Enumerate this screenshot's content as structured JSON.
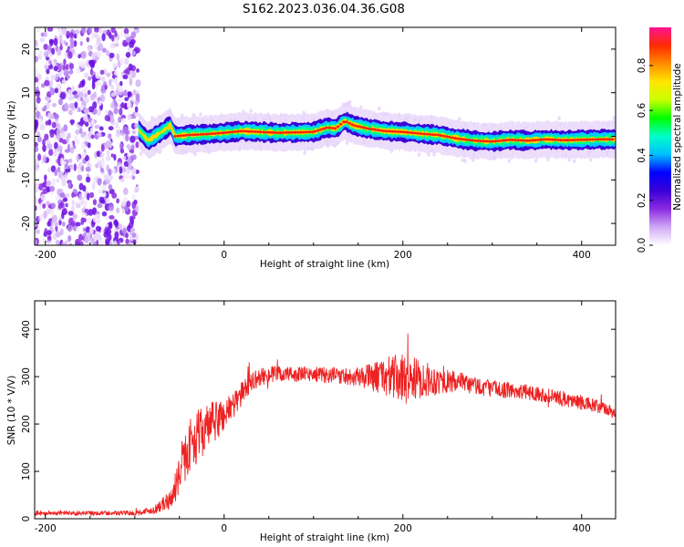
{
  "figure": {
    "title": "S162.2023.036.04.36.G08"
  },
  "chart_data": [
    {
      "type": "heatmap",
      "xlabel": "Height of straight line (km)",
      "ylabel": "Frequency (Hz)",
      "xlim": [
        -212,
        438
      ],
      "ylim": [
        -25,
        25
      ],
      "xticks": [
        "-200",
        "0",
        "200",
        "400"
      ],
      "xtick_values": [
        -200,
        0,
        200,
        400
      ],
      "yticks": [
        "-20",
        "-10",
        "0",
        "10",
        "20"
      ],
      "ytick_values": [
        -20,
        -10,
        0,
        10,
        20
      ],
      "noise_region_x": [
        -212,
        -96
      ],
      "track": {
        "x": [
          -96,
          -85,
          -70,
          -60,
          -55,
          -40,
          -20,
          0,
          20,
          40,
          60,
          80,
          100,
          115,
          125,
          135,
          145,
          160,
          180,
          200,
          220,
          240,
          260,
          280,
          300,
          320,
          340,
          360,
          380,
          400,
          420,
          438
        ],
        "y": [
          1.5,
          -1,
          1,
          2.5,
          0,
          0.3,
          0.5,
          0.8,
          1.2,
          1,
          0.8,
          0.9,
          1,
          2,
          1.8,
          3.5,
          2.5,
          1.8,
          1.2,
          1,
          0.6,
          0.3,
          -0.5,
          -1,
          -1.2,
          -0.8,
          -1,
          -0.7,
          -0.9,
          -0.8,
          -0.7,
          -0.7
        ]
      },
      "colorbar": {
        "label": "Normalized spectral amplitude",
        "ticks": [
          "0.0",
          "0.2",
          "0.4",
          "0.6",
          "0.8"
        ],
        "tick_values": [
          0,
          0.2,
          0.4,
          0.6,
          0.8
        ],
        "range": [
          0,
          0.97
        ],
        "colors": [
          "#ffffff",
          "#cfa8f5",
          "#8a2be2",
          "#3a00d6",
          "#0000ff",
          "#00bfff",
          "#00ffc8",
          "#00ff00",
          "#c8ff00",
          "#ffe600",
          "#ff8c00",
          "#ff2a00",
          "#ff1493"
        ]
      }
    },
    {
      "type": "line",
      "xlabel": "Height of straight line (km)",
      "ylabel": "SNR (10 * V/V)",
      "xlim": [
        -212,
        438
      ],
      "ylim": [
        0,
        460
      ],
      "xticks": [
        "-200",
        "0",
        "200",
        "400"
      ],
      "xtick_values": [
        -200,
        0,
        200,
        400
      ],
      "yticks": [
        "0",
        "100",
        "200",
        "300",
        "400"
      ],
      "ytick_values": [
        0,
        100,
        200,
        300,
        400
      ],
      "series": [
        {
          "color": "#ee2222",
          "envelope": {
            "x": [
              -212,
              -100,
              -80,
              -60,
              -50,
              -40,
              -30,
              -20,
              -10,
              0,
              10,
              20,
              30,
              50,
              100,
              150,
              180,
              200,
              220,
              250,
              300,
              350,
              400,
              438
            ],
            "y": [
              12,
              12,
              18,
              40,
              90,
              150,
              175,
              190,
              205,
              220,
              240,
              265,
              290,
              305,
              305,
              300,
              300,
              295,
              295,
              290,
              275,
              265,
              245,
              225
            ],
            "noise": [
              5,
              5,
              8,
              20,
              40,
              55,
              55,
              50,
              45,
              40,
              30,
              25,
              20,
              18,
              16,
              20,
              40,
              55,
              40,
              25,
              18,
              16,
              16,
              15
            ]
          }
        }
      ]
    }
  ]
}
